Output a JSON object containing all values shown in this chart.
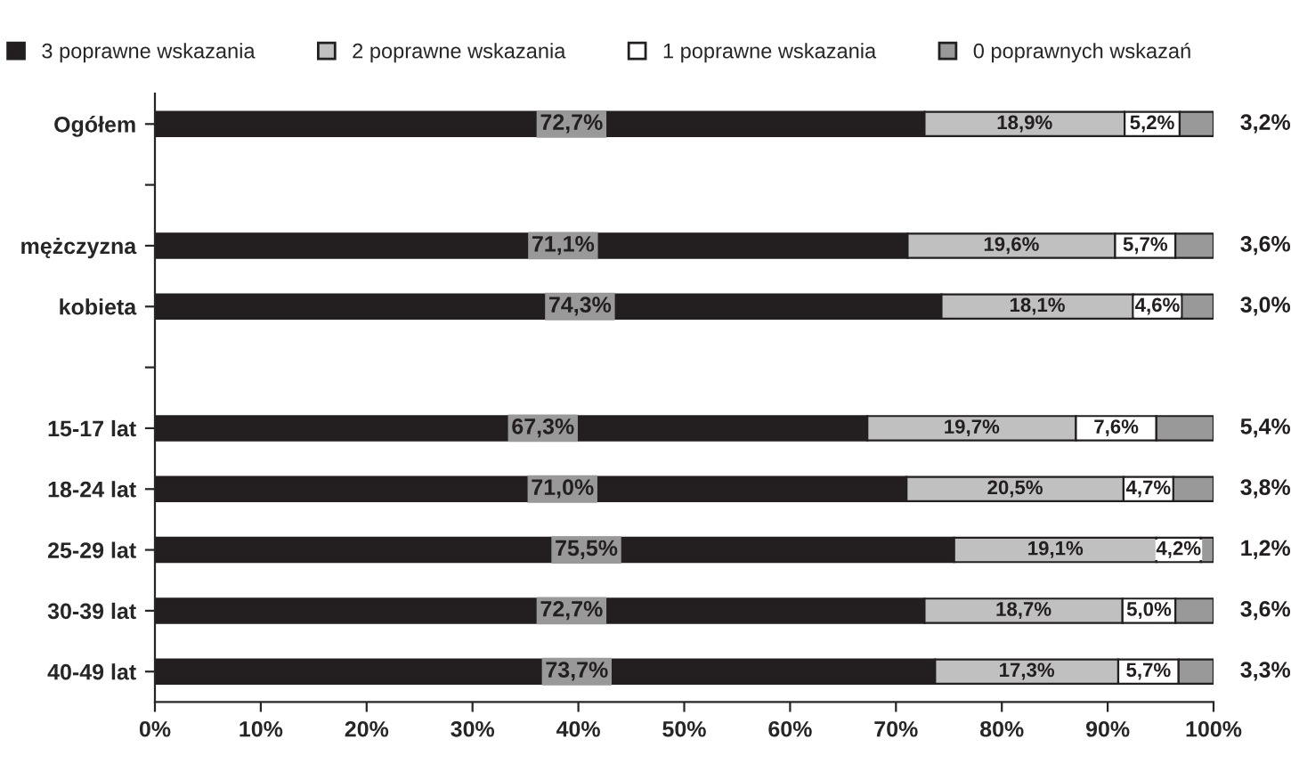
{
  "chart_data": {
    "type": "bar",
    "orientation": "horizontal",
    "stacked": true,
    "categories": [
      "Ogółem",
      null,
      "mężczyzna",
      "kobieta",
      null,
      "15-17 lat",
      "18-24 lat",
      "25-29 lat",
      "30-39 lat",
      "40-49 lat"
    ],
    "series": [
      {
        "name": "3 poprawne wskazania",
        "color": "#231f20",
        "values": [
          72.7,
          null,
          71.1,
          74.3,
          null,
          67.3,
          71.0,
          75.5,
          72.7,
          73.7
        ],
        "value_labels": [
          "72,7%",
          null,
          "71,1%",
          "74,3%",
          null,
          "67,3%",
          "71,0%",
          "75,5%",
          "72,7%",
          "73,7%"
        ]
      },
      {
        "name": "2 poprawne wskazania",
        "color": "#c0c0c0",
        "values": [
          18.9,
          null,
          19.6,
          18.1,
          null,
          19.7,
          20.5,
          19.1,
          18.7,
          17.3
        ],
        "value_labels": [
          "18,9%",
          null,
          "19,6%",
          "18,1%",
          null,
          "19,7%",
          "20,5%",
          "19,1%",
          "18,7%",
          "17,3%"
        ]
      },
      {
        "name": "1 poprawne wskazania",
        "color": "#ffffff",
        "values": [
          5.2,
          null,
          5.7,
          4.6,
          null,
          7.6,
          4.7,
          4.2,
          5.0,
          5.7
        ],
        "value_labels": [
          "5,2%",
          null,
          "5,7%",
          "4,6%",
          null,
          "7,6%",
          "4,7%",
          "4,2%",
          "5,0%",
          "5,7%"
        ]
      },
      {
        "name": "0 poprawnych wskazań",
        "color": "#999999",
        "values": [
          3.2,
          null,
          3.6,
          3.0,
          null,
          5.4,
          3.8,
          1.2,
          3.6,
          3.3
        ],
        "value_labels": [
          "3,2%",
          null,
          "3,6%",
          "3,0%",
          null,
          "5,4%",
          "3,8%",
          "1,2%",
          "3,6%",
          "3,3%"
        ]
      }
    ],
    "xlim": [
      0,
      100
    ],
    "xticks": [
      {
        "value": 0,
        "label": "0%"
      },
      {
        "value": 10,
        "label": "10%"
      },
      {
        "value": 20,
        "label": "20%"
      },
      {
        "value": 30,
        "label": "30%"
      },
      {
        "value": 40,
        "label": "40%"
      },
      {
        "value": 50,
        "label": "50%"
      },
      {
        "value": 60,
        "label": "60%"
      },
      {
        "value": 70,
        "label": "70%"
      },
      {
        "value": 80,
        "label": "80%"
      },
      {
        "value": 90,
        "label": "90%"
      },
      {
        "value": 100,
        "label": "100%"
      }
    ],
    "legend": "top",
    "grid": false
  }
}
